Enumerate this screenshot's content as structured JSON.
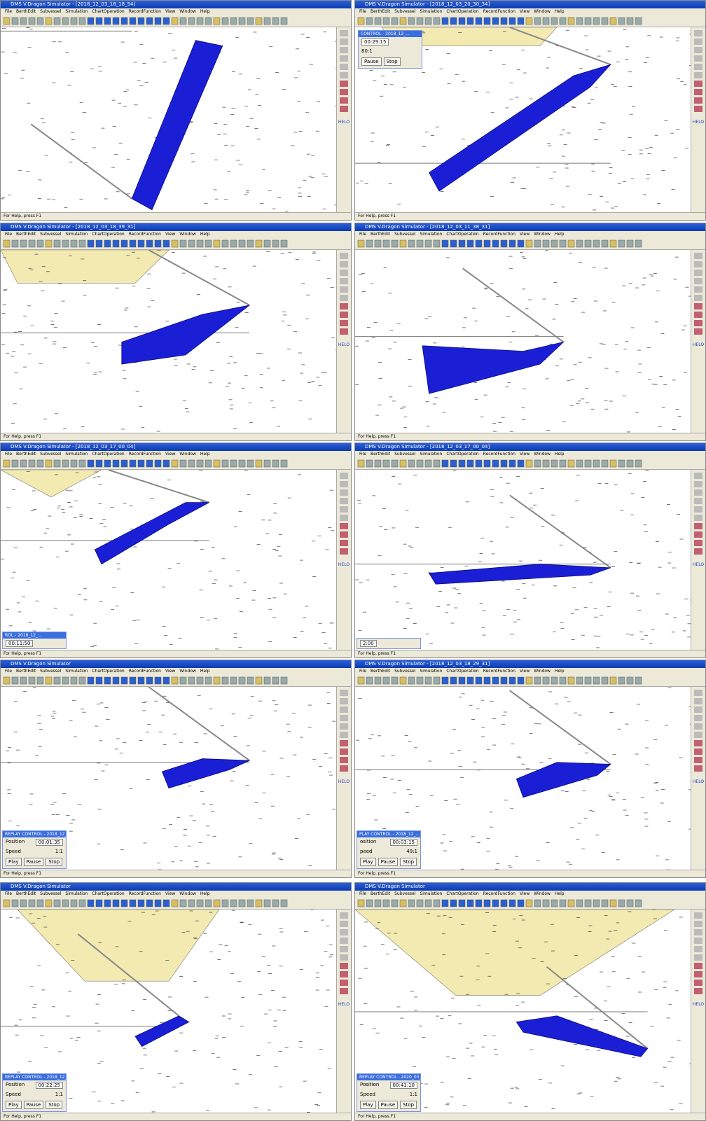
{
  "menu": [
    "File",
    "BerthEdit",
    "Subvessel",
    "Simulation",
    "ChartOperation",
    "RecordFunction",
    "View",
    "Window",
    "Help"
  ],
  "sidebar_label": "HELO",
  "panels": [
    {
      "title": "DMS V.Dragon Simulator - [2018_12_03_18_18_54]",
      "status": "For Help, press F1"
    },
    {
      "title": "DMS V.Dragon Simulator - [2018_12_03_20_30_34]",
      "status": "For Help, press F1",
      "replay": {
        "header": "CONTROL - 2018_12_...",
        "position": "00:29:15",
        "speed": "80:1",
        "buttons": [
          "Pause",
          "Stop"
        ]
      }
    },
    {
      "title": "DMS V.Dragon Simulator - [2018_12_03_18_39_31]",
      "status": "For Help, press F1"
    },
    {
      "title": "DMS V.Dragon Simulator - [2018_12_03_11_38_31]",
      "status": "For Help, press F1"
    },
    {
      "title": "DMS V.Dragon Simulator - [2018_12_03_17_00_04]",
      "status": "For Help, press F1",
      "replay": {
        "header": "ROL - 2018_12_...",
        "position": "00:11:50"
      }
    },
    {
      "title": "DMS V.Dragon Simulator - [2018_12_03_17_00_04]",
      "status": "For Help, press F1",
      "replay": {
        "position": "2:00"
      }
    },
    {
      "title": "DMS V.Dragon Simulator",
      "status": "For Help, press F1",
      "replay": {
        "header": "REPLAY CONTROL - 2018_12_...",
        "position_label": "Position",
        "position": "00:01:35",
        "speed_label": "Speed",
        "speed": "1:1",
        "buttons": [
          "Play",
          "Pause",
          "Stop"
        ]
      }
    },
    {
      "title": "DMS V.Dragon Simulator - [2018_12_03_18_29_31]",
      "status": "For Help, press F1",
      "replay": {
        "header": "PLAY CONTROL - 2018_12_...",
        "position_label": "osition",
        "position": "00:03:15",
        "speed_label": "peed",
        "speed": "49:1",
        "buttons": [
          "Play",
          "Pause",
          "Stop"
        ]
      }
    },
    {
      "title": "DMS V.Dragon Simulator",
      "status": "For Help, press F1",
      "replay": {
        "header": "REPLAY CONTROL - 2018_12_...",
        "position_label": "Position",
        "position": "00:22:25",
        "speed_label": "Speed",
        "speed": "1:1",
        "buttons": [
          "Play",
          "Pause",
          "Stop"
        ]
      }
    },
    {
      "title": "DMS V.Dragon Simulator",
      "status": "For Help, press F1",
      "replay": {
        "header": "REPLAY CONTROL - 2020_03_...",
        "position_label": "Position",
        "position": "00:41:10",
        "speed_label": "Speed",
        "speed": "1:1",
        "buttons": [
          "Play",
          "Pause",
          "Stop"
        ]
      }
    }
  ]
}
